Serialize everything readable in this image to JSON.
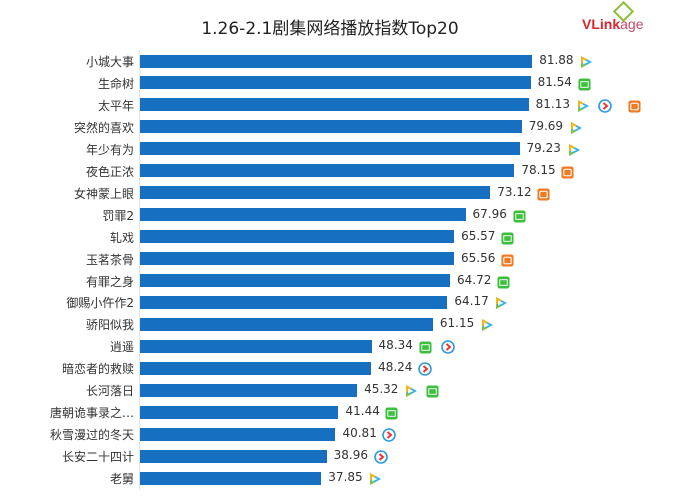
{
  "logo_text": "VLinkage",
  "colors": {
    "bar": "#176fc1",
    "tencent": "#2fb2e6",
    "iqiyi": "#3dbf3d",
    "youku": "#2b9be0",
    "mango": "#f07a22"
  },
  "chart_data": {
    "type": "bar",
    "orientation": "horizontal",
    "title": "1.26-2.1剧集网络播放指数Top20",
    "xlim": [
      0,
      85
    ],
    "grid": false,
    "categories": [
      "小城大事",
      "生命树",
      "太平年",
      "突然的喜欢",
      "年少有为",
      "夜色正浓",
      "女神蒙上眼",
      "罚罪2",
      "轧戏",
      "玉茗茶骨",
      "有罪之身",
      "御赐小仵作2",
      "骄阳似我",
      "逍遥",
      "暗恋者的救赎",
      "长河落日",
      "唐朝诡事录之…",
      "秋雪漫过的冬天",
      "长安二十四计",
      "老舅"
    ],
    "values": [
      81.88,
      81.54,
      81.13,
      79.69,
      79.23,
      78.15,
      73.12,
      67.96,
      65.57,
      65.56,
      64.72,
      64.17,
      61.15,
      48.34,
      48.24,
      45.32,
      41.44,
      40.81,
      38.96,
      37.85
    ],
    "value_labels": [
      "81.88",
      "81.54",
      "81.13",
      "79.69",
      "79.23",
      "78.15",
      "73.12",
      "67.96",
      "65.57",
      "65.56",
      "64.72",
      "64.17",
      "61.15",
      "48.34",
      "48.24",
      "45.32",
      "41.44",
      "40.81",
      "38.96",
      "37.85"
    ],
    "platform_icons": [
      [
        "tencent-video"
      ],
      [
        "iqiyi"
      ],
      [
        "tencent-video",
        "youku",
        "mango-tv"
      ],
      [
        "tencent-video"
      ],
      [
        "tencent-video"
      ],
      [
        "mango-tv"
      ],
      [
        "mango-tv"
      ],
      [
        "iqiyi"
      ],
      [
        "iqiyi"
      ],
      [
        "mango-tv"
      ],
      [
        "iqiyi"
      ],
      [
        "tencent-video"
      ],
      [
        "tencent-video"
      ],
      [
        "iqiyi",
        "youku"
      ],
      [
        "youku"
      ],
      [
        "tencent-video",
        "iqiyi"
      ],
      [
        "iqiyi"
      ],
      [
        "youku"
      ],
      [
        "youku"
      ],
      [
        "tencent-video"
      ]
    ]
  }
}
